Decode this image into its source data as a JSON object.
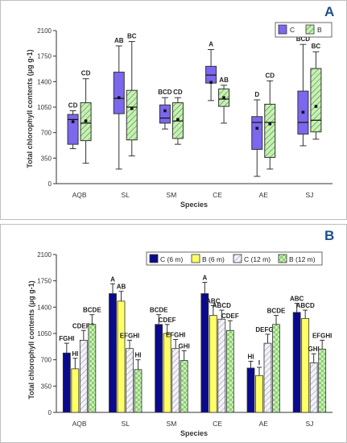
{
  "chart_data": [
    {
      "panel": "A",
      "type": "box",
      "xlabel": "Species",
      "ylabel": "Total chlorophyll contents (μg g-1)",
      "ylim": [
        0,
        2100
      ],
      "yticks": [
        "0",
        "350",
        "700",
        "1050",
        "1400",
        "1750",
        "2100"
      ],
      "categories": [
        "AQB",
        "SL",
        "SM",
        "CE",
        "AE",
        "SJ"
      ],
      "legend_placement": "top-right",
      "colors": {
        "C": "#7b68ee",
        "B": "#c8f0b4",
        "B_hatch": "#3a8a3a"
      },
      "series": [
        {
          "name": "C",
          "boxes": [
            {
              "min": 480,
              "q1": 540,
              "median": 880,
              "q3": 950,
              "max": 1000,
              "mean": 850,
              "letter": "CD"
            },
            {
              "min": 200,
              "q1": 960,
              "median": 1170,
              "q3": 1530,
              "max": 1890,
              "mean": 1180,
              "letter": "AB"
            },
            {
              "min": 750,
              "q1": 830,
              "median": 900,
              "q3": 1080,
              "max": 1180,
              "mean": 1000,
              "letter": "BCD"
            },
            {
              "min": 1140,
              "q1": 1380,
              "median": 1490,
              "q3": 1610,
              "max": 1840,
              "mean": 1390,
              "letter": "A"
            },
            {
              "min": 100,
              "q1": 470,
              "median": 840,
              "q3": 920,
              "max": 1150,
              "mean": 760,
              "letter": "D"
            },
            {
              "min": 520,
              "q1": 680,
              "median": 840,
              "q3": 1270,
              "max": 1910,
              "mean": 980,
              "letter": "BCD"
            }
          ]
        },
        {
          "name": "B",
          "boxes": [
            {
              "min": 280,
              "q1": 590,
              "median": 830,
              "q3": 1110,
              "max": 1440,
              "mean": 860,
              "letter": "CD"
            },
            {
              "min": 380,
              "q1": 600,
              "median": 1050,
              "q3": 1280,
              "max": 1950,
              "mean": 1030,
              "letter": "BC"
            },
            {
              "min": 540,
              "q1": 620,
              "median": 860,
              "q3": 1110,
              "max": 1180,
              "mean": 880,
              "letter": "CD"
            },
            {
              "min": 830,
              "q1": 1060,
              "median": 1160,
              "q3": 1300,
              "max": 1350,
              "mean": 1180,
              "letter": "AB"
            },
            {
              "min": 200,
              "q1": 360,
              "median": 840,
              "q3": 1090,
              "max": 1410,
              "mean": 820,
              "letter": "CD"
            },
            {
              "min": 610,
              "q1": 710,
              "median": 870,
              "q3": 1580,
              "max": 1810,
              "mean": 1060,
              "letter": "BC"
            }
          ]
        }
      ]
    },
    {
      "panel": "B",
      "type": "bar",
      "xlabel": "Species",
      "ylabel": "Total chlorophyll contents (μg g-1)",
      "ylim": [
        0,
        2100
      ],
      "yticks": [
        "0",
        "350",
        "700",
        "1050",
        "1400",
        "1750",
        "2100"
      ],
      "categories": [
        "AQB",
        "SL",
        "SM",
        "CE",
        "AE",
        "SJ"
      ],
      "legend_placement": "top",
      "series": [
        {
          "name": "C (6 m)",
          "color": "#0a0a8c",
          "values": [
            790,
            1580,
            1170,
            1580,
            590,
            1330
          ],
          "errors": [
            130,
            130,
            130,
            150,
            90,
            120
          ],
          "letters": [
            "FGHI",
            "A",
            "BCDE",
            "A",
            "HI",
            "ABC"
          ]
        },
        {
          "name": "B (6 m)",
          "color": "#ffff66",
          "values": [
            580,
            1480,
            1050,
            1290,
            490,
            1250
          ],
          "errors": [
            140,
            130,
            120,
            130,
            110,
            110
          ],
          "letters": [
            "HI",
            "AB",
            "CDEF",
            "ABC",
            "I",
            "ABCD"
          ]
        },
        {
          "name": "C (12 m)",
          "color": "#e6e6f0",
          "values": [
            960,
            850,
            850,
            1240,
            920,
            660
          ],
          "errors": [
            130,
            110,
            120,
            120,
            120,
            120
          ],
          "letters": [
            "CDEFG",
            "EFGHI",
            "EFGHI",
            "ABCD",
            "DEFGHI",
            "GHI"
          ]
        },
        {
          "name": "B (12 m)",
          "color": "#c8f0b4",
          "values": [
            1170,
            570,
            690,
            1090,
            1170,
            840
          ],
          "errors": [
            130,
            130,
            130,
            130,
            120,
            120
          ],
          "letters": [
            "BCDE",
            "HI",
            "GHI",
            "CDEF",
            "BCDE",
            "EFGHI"
          ]
        }
      ]
    }
  ]
}
